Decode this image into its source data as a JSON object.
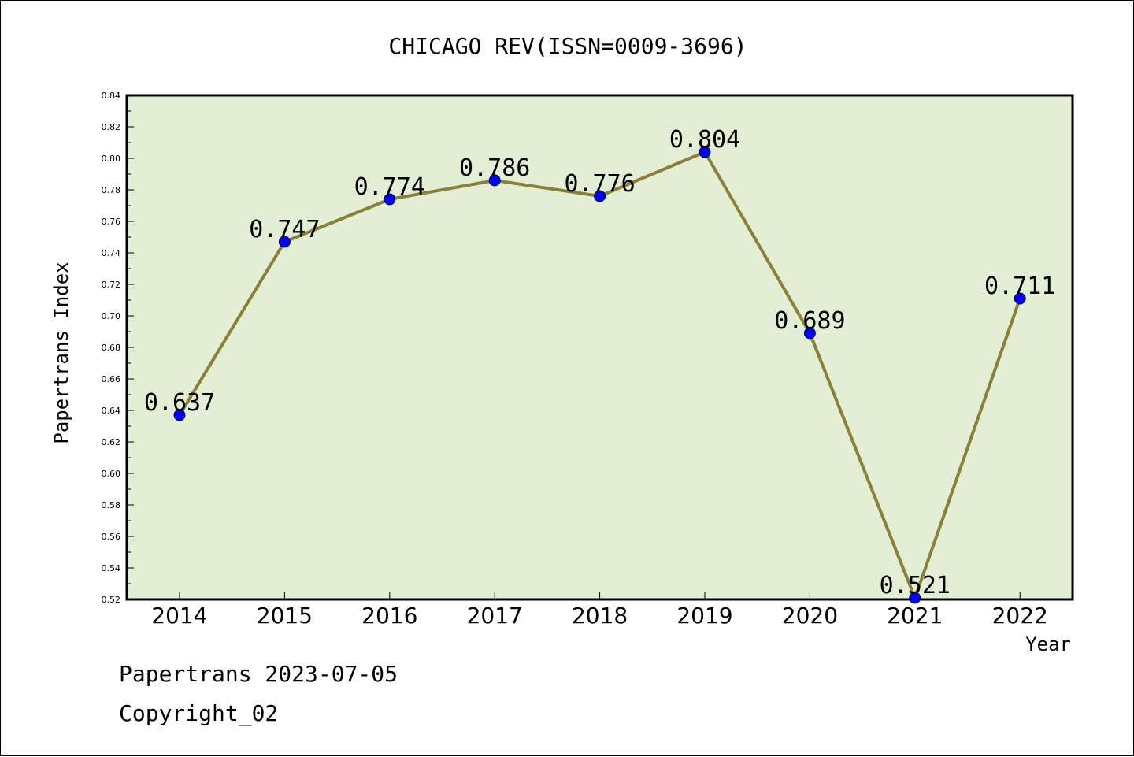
{
  "chart_data": {
    "type": "line",
    "title": "CHICAGO REV(ISSN=0009-3696)",
    "xlabel": "Year",
    "ylabel": "Papertrans Index",
    "categories": [
      "2014",
      "2015",
      "2016",
      "2017",
      "2018",
      "2019",
      "2020",
      "2021",
      "2022"
    ],
    "values": [
      0.637,
      0.747,
      0.774,
      0.786,
      0.776,
      0.804,
      0.689,
      0.521,
      0.711
    ],
    "data_labels": [
      "0.637",
      "0.747",
      "0.774",
      "0.786",
      "0.776",
      "0.804",
      "0.689",
      "0.521",
      "0.711"
    ],
    "ylim": [
      0.52,
      0.84
    ],
    "yticks": [
      0.52,
      0.54,
      0.56,
      0.58,
      0.6,
      0.62,
      0.64,
      0.66,
      0.68,
      0.7,
      0.72,
      0.74,
      0.76,
      0.78,
      0.8,
      0.82,
      0.84
    ],
    "ytick_labels": [
      "0.52",
      "0.54",
      "0.56",
      "0.58",
      "0.60",
      "0.62",
      "0.64",
      "0.66",
      "0.68",
      "0.70",
      "0.72",
      "0.74",
      "0.76",
      "0.78",
      "0.80",
      "0.82",
      "0.84"
    ],
    "grid": false,
    "colors": {
      "plot_background": "#e2efd5",
      "line": "#8b8038",
      "marker": "#0000ff",
      "axis": "#000000"
    }
  },
  "footer": {
    "line1": "Papertrans 2023-07-05",
    "line2": "Copyright_02"
  }
}
